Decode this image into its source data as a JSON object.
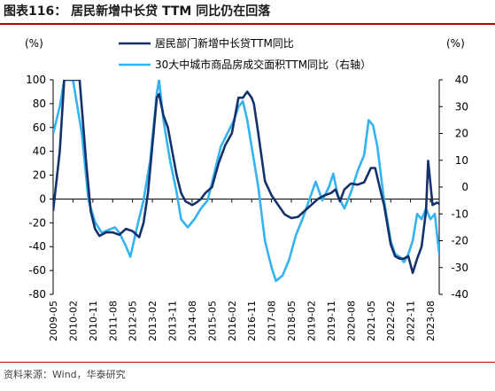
{
  "header": {
    "title": "图表116：  居民新增中长贷 TTM 同比仍在回落"
  },
  "footer": {
    "source": "资料来源：Wind，华泰研究"
  },
  "colors": {
    "series_1": "#14316b",
    "series_2": "#33b4f0",
    "accent_rule": "#c00000"
  },
  "chart_data": {
    "type": "line",
    "left_unit": "(%)",
    "right_unit": "(%)",
    "y_left": {
      "min": -80,
      "max": 100,
      "ticks": [
        "100",
        "80",
        "60",
        "40",
        "20",
        "0",
        "-20",
        "-40",
        "-60",
        "-80"
      ]
    },
    "y_right": {
      "min": -40,
      "max": 40,
      "ticks": [
        "40",
        "30",
        "20",
        "10",
        "0",
        "-10",
        "-20",
        "-30",
        "-40"
      ]
    },
    "x_range": [
      "2009-05",
      "2023-12"
    ],
    "x_ticks": [
      "2009-05",
      "2010-02",
      "2010-11",
      "2011-08",
      "2012-05",
      "2013-02",
      "2013-11",
      "2014-08",
      "2015-05",
      "2016-02",
      "2016-11",
      "2017-08",
      "2018-05",
      "2019-02",
      "2019-11",
      "2020-08",
      "2021-05",
      "2022-02",
      "2022-11",
      "2023-08"
    ],
    "legend_position": "top-center",
    "series": [
      {
        "name": "居民部门新增中长贷TTM同比",
        "axis": "left",
        "points": [
          [
            "2009-05",
            -10
          ],
          [
            "2009-08",
            40
          ],
          [
            "2009-10",
            100
          ],
          [
            "2010-05",
            100
          ],
          [
            "2010-08",
            30
          ],
          [
            "2010-10",
            -10
          ],
          [
            "2010-12",
            -25
          ],
          [
            "2011-02",
            -31
          ],
          [
            "2011-05",
            -28
          ],
          [
            "2011-08",
            -28
          ],
          [
            "2011-11",
            -30
          ],
          [
            "2012-02",
            -25
          ],
          [
            "2012-05",
            -27
          ],
          [
            "2012-08",
            -32
          ],
          [
            "2012-10",
            -20
          ],
          [
            "2012-12",
            5
          ],
          [
            "2013-02",
            45
          ],
          [
            "2013-04",
            85
          ],
          [
            "2013-05",
            88
          ],
          [
            "2013-07",
            70
          ],
          [
            "2013-09",
            60
          ],
          [
            "2013-11",
            40
          ],
          [
            "2014-01",
            20
          ],
          [
            "2014-03",
            5
          ],
          [
            "2014-05",
            -2
          ],
          [
            "2014-08",
            -5
          ],
          [
            "2014-10",
            -3
          ],
          [
            "2014-12",
            0
          ],
          [
            "2015-02",
            5
          ],
          [
            "2015-05",
            10
          ],
          [
            "2015-08",
            30
          ],
          [
            "2015-11",
            45
          ],
          [
            "2016-02",
            55
          ],
          [
            "2016-05",
            85
          ],
          [
            "2016-07",
            85
          ],
          [
            "2016-09",
            90
          ],
          [
            "2016-11",
            85
          ],
          [
            "2016-12",
            80
          ],
          [
            "2017-02",
            55
          ],
          [
            "2017-05",
            15
          ],
          [
            "2017-08",
            3
          ],
          [
            "2017-11",
            -5
          ],
          [
            "2018-02",
            -13
          ],
          [
            "2018-05",
            -16
          ],
          [
            "2018-08",
            -15
          ],
          [
            "2018-11",
            -10
          ],
          [
            "2019-02",
            -5
          ],
          [
            "2019-05",
            0
          ],
          [
            "2019-08",
            3
          ],
          [
            "2019-11",
            5
          ],
          [
            "2020-01",
            8
          ],
          [
            "2020-03",
            -2
          ],
          [
            "2020-05",
            8
          ],
          [
            "2020-08",
            13
          ],
          [
            "2020-11",
            12
          ],
          [
            "2021-02",
            14
          ],
          [
            "2021-05",
            26
          ],
          [
            "2021-07",
            26
          ],
          [
            "2021-09",
            10
          ],
          [
            "2021-11",
            -5
          ],
          [
            "2022-02",
            -38
          ],
          [
            "2022-04",
            -48
          ],
          [
            "2022-06",
            -50
          ],
          [
            "2022-08",
            -50
          ],
          [
            "2022-10",
            -48
          ],
          [
            "2022-12",
            -62
          ],
          [
            "2023-02",
            -50
          ],
          [
            "2023-04",
            -40
          ],
          [
            "2023-06",
            -10
          ],
          [
            "2023-07",
            32
          ],
          [
            "2023-09",
            -5
          ],
          [
            "2023-11",
            -3
          ],
          [
            "2023-12",
            -4
          ]
        ]
      },
      {
        "name": "30大中城市商品房成交面积TTM同比（右轴）",
        "axis": "right",
        "points": [
          [
            "2009-05",
            20
          ],
          [
            "2009-08",
            30
          ],
          [
            "2009-10",
            40
          ],
          [
            "2010-02",
            40
          ],
          [
            "2010-06",
            20
          ],
          [
            "2010-09",
            -5
          ],
          [
            "2010-12",
            -13
          ],
          [
            "2011-03",
            -17
          ],
          [
            "2011-06",
            -16
          ],
          [
            "2011-09",
            -15
          ],
          [
            "2011-11",
            -17
          ],
          [
            "2012-02",
            -22
          ],
          [
            "2012-04",
            -26
          ],
          [
            "2012-07",
            -15
          ],
          [
            "2012-10",
            -5
          ],
          [
            "2013-01",
            10
          ],
          [
            "2013-04",
            35
          ],
          [
            "2013-05",
            40
          ],
          [
            "2013-07",
            25
          ],
          [
            "2013-10",
            10
          ],
          [
            "2014-01",
            -2
          ],
          [
            "2014-03",
            -12
          ],
          [
            "2014-06",
            -15
          ],
          [
            "2014-09",
            -12
          ],
          [
            "2014-12",
            -8
          ],
          [
            "2015-03",
            -5
          ],
          [
            "2015-06",
            5
          ],
          [
            "2015-09",
            15
          ],
          [
            "2015-12",
            20
          ],
          [
            "2016-03",
            25
          ],
          [
            "2016-05",
            30
          ],
          [
            "2016-07",
            32
          ],
          [
            "2016-09",
            25
          ],
          [
            "2016-11",
            15
          ],
          [
            "2017-02",
            0
          ],
          [
            "2017-05",
            -20
          ],
          [
            "2017-08",
            -30
          ],
          [
            "2017-10",
            -35
          ],
          [
            "2018-01",
            -33
          ],
          [
            "2018-04",
            -27
          ],
          [
            "2018-07",
            -18
          ],
          [
            "2018-10",
            -12
          ],
          [
            "2019-01",
            -5
          ],
          [
            "2019-04",
            2
          ],
          [
            "2019-07",
            -5
          ],
          [
            "2019-10",
            0
          ],
          [
            "2019-12",
            5
          ],
          [
            "2020-02",
            -3
          ],
          [
            "2020-05",
            -8
          ],
          [
            "2020-08",
            -2
          ],
          [
            "2020-11",
            6
          ],
          [
            "2021-02",
            12
          ],
          [
            "2021-04",
            25
          ],
          [
            "2021-06",
            23
          ],
          [
            "2021-08",
            15
          ],
          [
            "2021-11",
            -5
          ],
          [
            "2022-02",
            -20
          ],
          [
            "2022-04",
            -25
          ],
          [
            "2022-06",
            -26
          ],
          [
            "2022-08",
            -28
          ],
          [
            "2022-10",
            -25
          ],
          [
            "2022-12",
            -20
          ],
          [
            "2023-02",
            -10
          ],
          [
            "2023-04",
            -12
          ],
          [
            "2023-06",
            -8
          ],
          [
            "2023-08",
            -12
          ],
          [
            "2023-10",
            -10
          ],
          [
            "2023-12",
            -25
          ]
        ]
      }
    ]
  }
}
